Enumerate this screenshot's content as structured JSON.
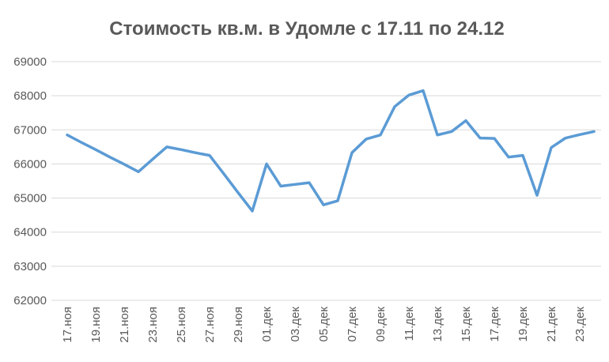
{
  "chart_data": {
    "type": "line",
    "title": "Стоимость кв.м. в Удомле с 17.11 по 24.12",
    "categories": [
      "17.ноя",
      null,
      "19.ноя",
      null,
      "21.ноя",
      null,
      "23.ноя",
      null,
      "25.ноя",
      null,
      "27.ноя",
      null,
      "29.ноя",
      null,
      "01.дек",
      null,
      "03.дек",
      null,
      "05.дек",
      null,
      "07.дек",
      null,
      "09.дек",
      null,
      "11.дек",
      null,
      "13.дек",
      null,
      "15.дек",
      null,
      "17.дек",
      null,
      "19.дек",
      null,
      "21.дек",
      null,
      "23.дек",
      null
    ],
    "series": [
      {
        "color": "#5b9bd5",
        "values": [
          66850,
          66630,
          66420,
          66200,
          65990,
          65770,
          66140,
          66500,
          66420,
          66330,
          66250,
          65710,
          65160,
          64620,
          66000,
          65350,
          65400,
          65450,
          64800,
          64920,
          66330,
          66730,
          66850,
          67680,
          68020,
          68150,
          66850,
          66950,
          67270,
          66760,
          66750,
          66200,
          66250,
          65080,
          66480,
          66760,
          66860,
          66950
        ]
      }
    ],
    "ylim": [
      62000,
      69000
    ],
    "yticks": [
      62000,
      63000,
      64000,
      65000,
      66000,
      67000,
      68000,
      69000
    ],
    "grid": true
  }
}
